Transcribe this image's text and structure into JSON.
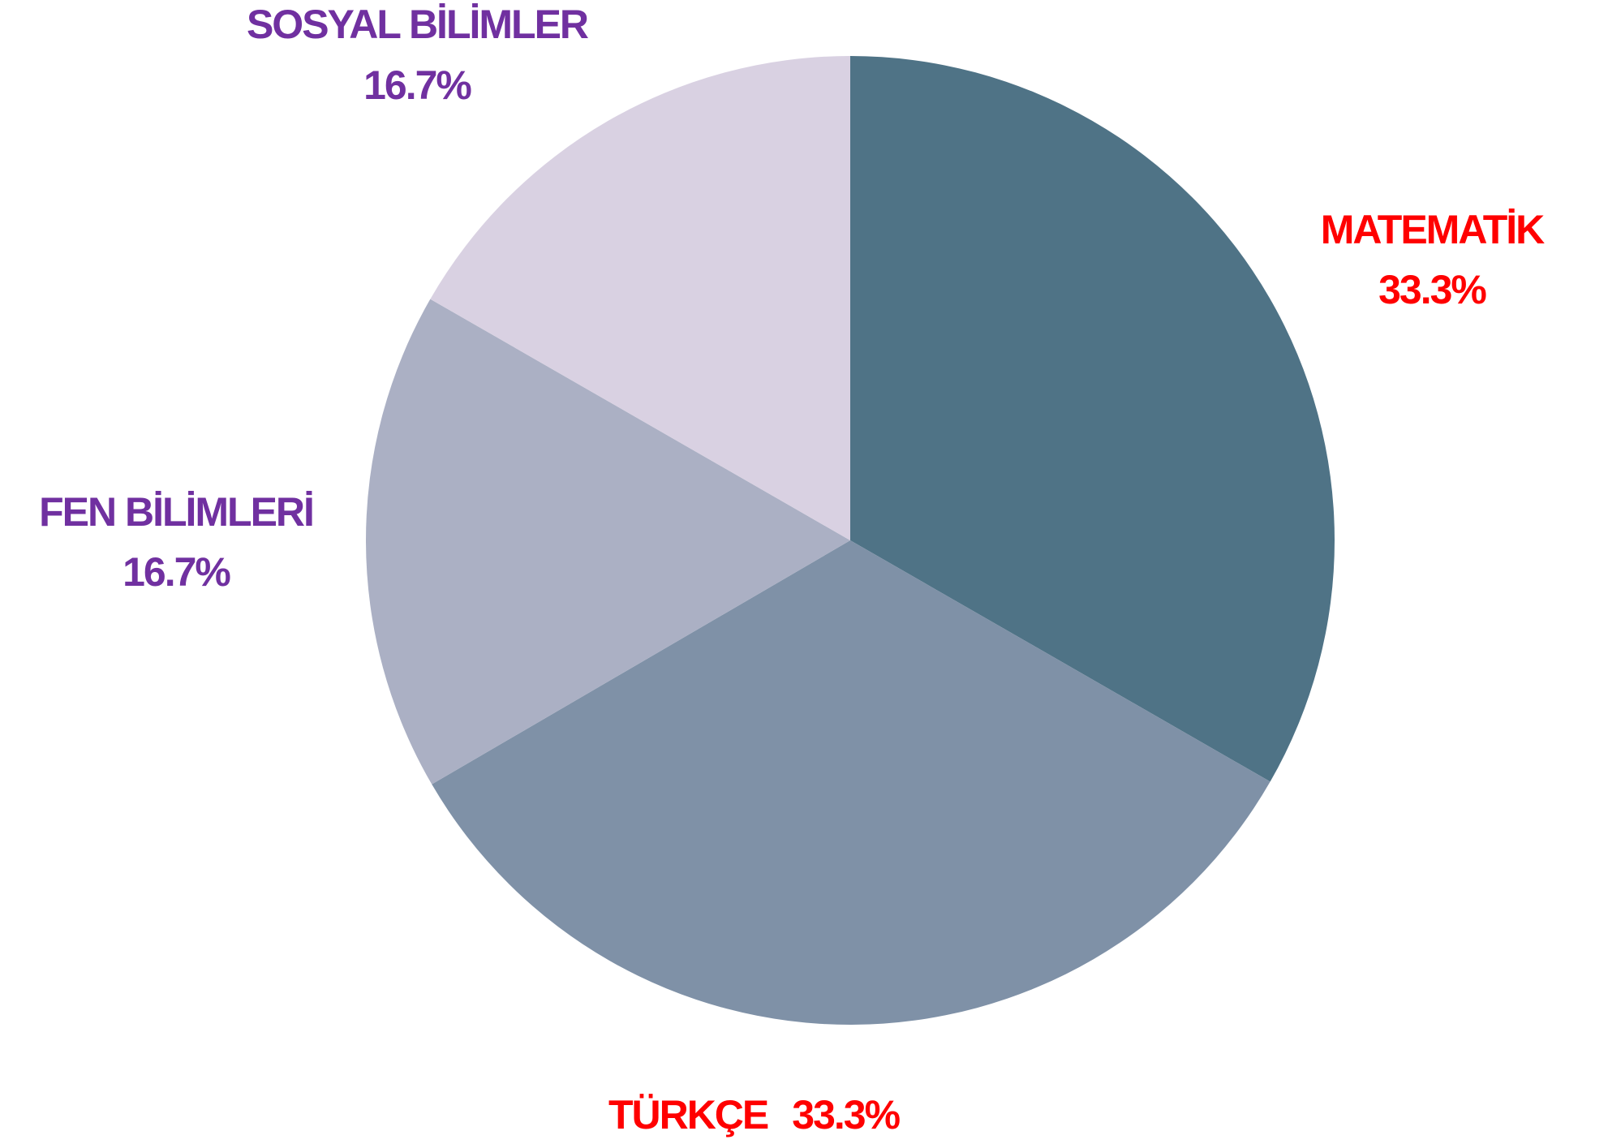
{
  "chart_data": {
    "type": "pie",
    "categories": [
      "MATEMATİK",
      "TÜRKÇE",
      "FEN BİLİMLERİ",
      "SOSYAL BİLİMLER"
    ],
    "values": [
      33.3,
      33.3,
      16.7,
      16.7
    ],
    "value_labels": [
      "33.3%",
      "33.3%",
      "16.7%",
      "16.7%"
    ],
    "colors": [
      "#4f7386",
      "#7f91a7",
      "#abb0c4",
      "#d9d1e2"
    ],
    "label_colors": [
      "#ff0000",
      "#ff0000",
      "#7030a0",
      "#7030a0"
    ]
  }
}
